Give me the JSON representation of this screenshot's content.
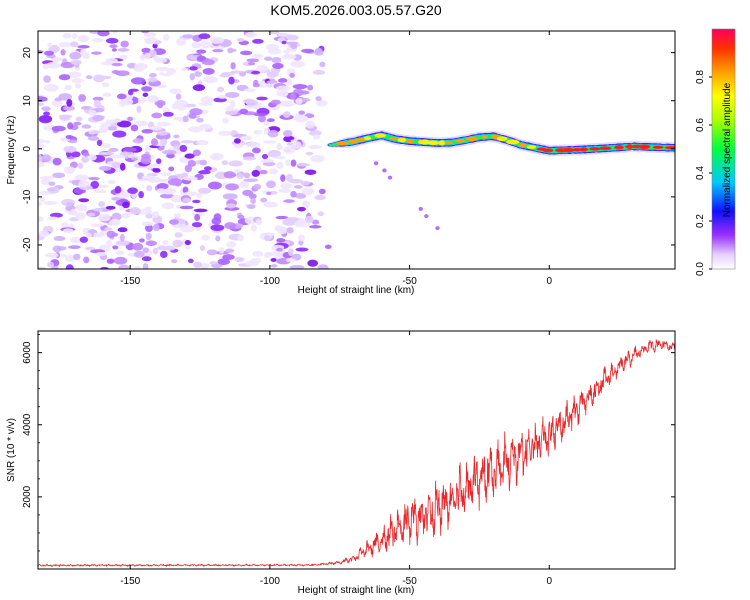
{
  "title": "KOM5.2026.003.05.57.G20",
  "chart_data": [
    {
      "type": "heatmap",
      "name": "spectrogram",
      "xlabel": "Height of straight line (km)",
      "ylabel": "Frequency (Hz)",
      "xlim": [
        -183,
        45
      ],
      "ylim": [
        -25,
        24.5
      ],
      "xticks": [
        -150,
        -100,
        -50,
        0
      ],
      "xtick_labels": [
        "-150",
        "-100",
        "-50",
        "0"
      ],
      "yticks": [
        -20,
        -10,
        0,
        10,
        20
      ],
      "ytick_labels": [
        "-20",
        "-10",
        "0",
        "10",
        "20"
      ],
      "noise_region_x": [
        -183,
        -78
      ],
      "signal_start_x": -78,
      "signal_track": {
        "x": [
          -78,
          -70,
          -65,
          -60,
          -55,
          -50,
          -45,
          -40,
          -35,
          -30,
          -25,
          -20,
          -15,
          -10,
          -5,
          0,
          5,
          10,
          20,
          30,
          40,
          45
        ],
        "freq": [
          0.8,
          1.5,
          2.2,
          2.8,
          2.0,
          1.6,
          1.4,
          1.2,
          1.3,
          1.8,
          2.4,
          2.6,
          1.8,
          0.8,
          0.2,
          -0.4,
          -0.3,
          -0.2,
          0.1,
          0.5,
          0.3,
          0.2
        ]
      },
      "colorbar": {
        "label": "Normalized spectral amplitude",
        "range": [
          0,
          1
        ],
        "ticks": [
          0.0,
          0.2,
          0.4,
          0.6,
          0.8
        ],
        "tick_labels": [
          "0.0",
          "0.2",
          "0.4",
          "0.6",
          "0.8"
        ]
      }
    },
    {
      "type": "line",
      "name": "snr",
      "xlabel": "Height of straight line (km)",
      "ylabel": "SNR (10 * v/v)",
      "xlim": [
        -183,
        45
      ],
      "ylim": [
        0,
        6600
      ],
      "xticks": [
        -150,
        -100,
        -50,
        0
      ],
      "xtick_labels": [
        "-150",
        "-100",
        "-50",
        "0"
      ],
      "yticks": [
        2000,
        4000,
        6000
      ],
      "ytick_labels": [
        "2000",
        "4000",
        "6000"
      ],
      "color": "#e8282b",
      "baseline": 100,
      "envelope": {
        "x": [
          -183,
          -85,
          -75,
          -70,
          -65,
          -60,
          -55,
          -50,
          -45,
          -40,
          -35,
          -30,
          -25,
          -20,
          -15,
          -10,
          -5,
          0,
          5,
          10,
          15,
          20,
          25,
          30,
          35,
          40,
          45
        ],
        "mid": [
          100,
          110,
          180,
          300,
          550,
          800,
          1100,
          1300,
          1500,
          1700,
          1950,
          2200,
          2500,
          2700,
          2950,
          3200,
          3400,
          3700,
          4050,
          4450,
          4800,
          5250,
          5600,
          5900,
          6150,
          6250,
          6150
        ],
        "amp": [
          40,
          40,
          80,
          200,
          400,
          700,
          900,
          1100,
          1200,
          1300,
          1350,
          1400,
          1450,
          1450,
          1400,
          1300,
          1100,
          1000,
          900,
          800,
          700,
          600,
          500,
          400,
          300,
          300,
          200
        ]
      }
    }
  ]
}
